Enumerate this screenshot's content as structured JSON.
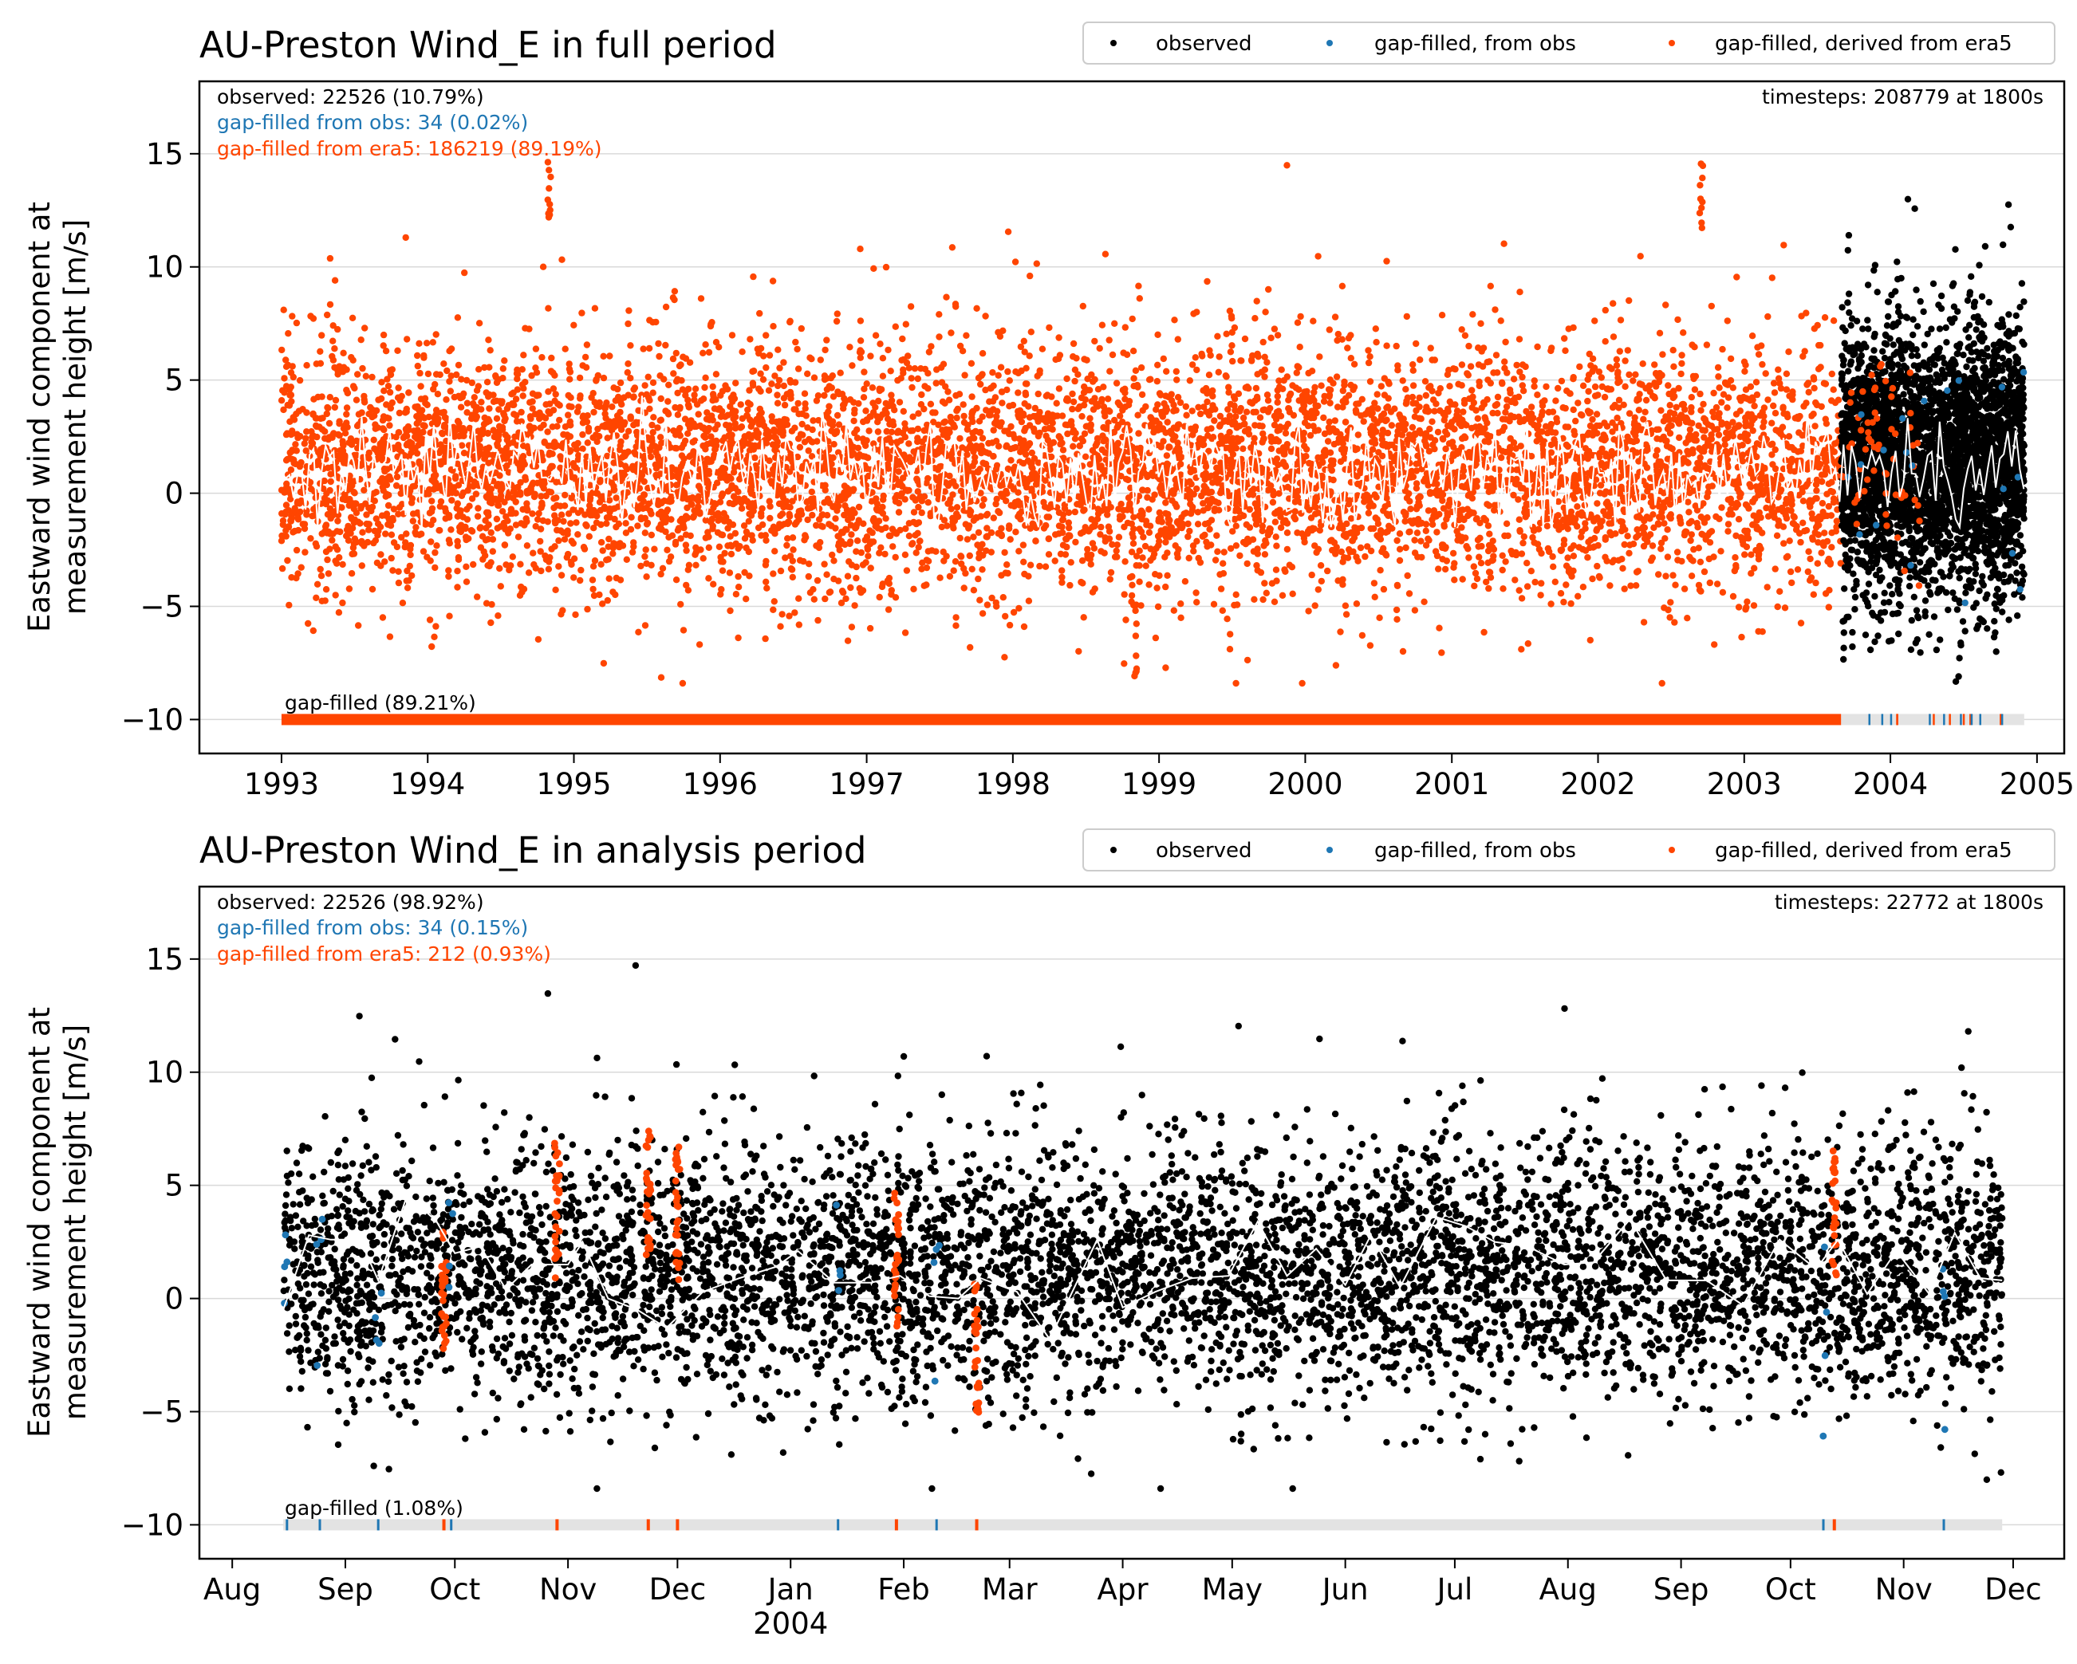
{
  "colors": {
    "observed": "#000000",
    "gapfilled_obs": "#1f77b4",
    "gapfilled_era5": "#ff4500",
    "mean_line": "#ffffff",
    "grid": "#d9d9d9",
    "gapbar_bg": "#e3e3e3"
  },
  "legend": {
    "observed": "observed",
    "gapfilled_obs": "gap-filled, from obs",
    "gapfilled_era5": "gap-filled, derived from era5"
  },
  "chart_data": [
    {
      "type": "scatter",
      "title": "AU-Preston Wind_E in full period",
      "ylabel": [
        "Eastward wind component at",
        "measurement height [m/s]"
      ],
      "ylim": [
        -11.5,
        18.2
      ],
      "yticks": [
        15,
        10,
        5,
        0,
        -5,
        -10
      ],
      "ytick_labels": [
        "15",
        "10",
        "5",
        "0",
        "−5",
        "−10"
      ],
      "xlim": [
        "1992-06-10",
        "2005-03-10"
      ],
      "xticks": [
        "1993-01-01",
        "1994-01-01",
        "1995-01-01",
        "1996-01-01",
        "1997-01-01",
        "1998-01-01",
        "1999-01-01",
        "2000-01-01",
        "2001-01-01",
        "2002-01-01",
        "2003-01-01",
        "2004-01-01",
        "2005-01-01"
      ],
      "xtick_labels": [
        "1993",
        "1994",
        "1995",
        "1996",
        "1997",
        "1998",
        "1999",
        "2000",
        "2001",
        "2002",
        "2003",
        "2004",
        "2005"
      ],
      "grid": "horizontal",
      "legend_position": "top-right, above plot",
      "stats": {
        "observed": "observed: 22526 (10.79%)",
        "gapfilled_obs": "gap-filled from obs: 34 (0.02%)",
        "gapfilled_era5": "gap-filled from era5: 186219 (89.19%)",
        "timesteps": "timesteps: 208779 at 1800s",
        "gapfilled_label": "gap-filled (89.21%)"
      },
      "series": [
        {
          "name": "gap-filled, derived from era5",
          "x_range": [
            "1993-01-01",
            "2003-08-31"
          ],
          "approx_range": [
            -7,
            10
          ],
          "spikes": [
            [
              "1994-11-01",
              15
            ],
            [
              "1998-11-01",
              -8.4
            ],
            [
              "2002-09-15",
              15.2
            ]
          ]
        },
        {
          "name": "observed",
          "x_range": [
            "2003-08-31",
            "2004-11-30"
          ],
          "approx_range": [
            -8.5,
            15.5
          ]
        },
        {
          "name": "monthly mean",
          "approx_range": [
            -1.5,
            4.5
          ]
        }
      ],
      "gapbar": {
        "filled_until": "2003-08-31",
        "end": "2004-11-30"
      }
    },
    {
      "type": "scatter",
      "title": "AU-Preston Wind_E in analysis period",
      "ylabel": [
        "Eastward wind component at",
        "measurement height [m/s]"
      ],
      "ylim": [
        -11.5,
        18.2
      ],
      "yticks": [
        15,
        10,
        5,
        0,
        -5,
        -10
      ],
      "ytick_labels": [
        "15",
        "10",
        "5",
        "0",
        "−5",
        "−10"
      ],
      "xlim": [
        "2003-07-23",
        "2004-12-15"
      ],
      "xticks": [
        "2003-08-01",
        "2003-09-01",
        "2003-10-01",
        "2003-11-01",
        "2003-12-01",
        "2004-01-01",
        "2004-02-01",
        "2004-03-01",
        "2004-04-01",
        "2004-05-01",
        "2004-06-01",
        "2004-07-01",
        "2004-08-01",
        "2004-09-01",
        "2004-10-01",
        "2004-11-01",
        "2004-12-01"
      ],
      "xtick_labels": [
        "Aug",
        "Sep",
        "Oct",
        "Nov",
        "Dec",
        "Jan",
        "Feb",
        "Mar",
        "Apr",
        "May",
        "Jun",
        "Jul",
        "Aug",
        "Sep",
        "Oct",
        "Nov",
        "Dec"
      ],
      "xtick_sublabel": {
        "at": "2004-01-01",
        "text": "2004"
      },
      "grid": "horizontal",
      "legend_position": "top-right, above plot",
      "stats": {
        "observed": "observed: 22526 (98.92%)",
        "gapfilled_obs": "gap-filled from obs: 34 (0.15%)",
        "gapfilled_era5": "gap-filled from era5: 212 (0.93%)",
        "timesteps": "timesteps: 22772 at 1800s",
        "gapfilled_label": "gap-filled (1.08%)"
      },
      "series": [
        {
          "name": "observed",
          "x_range": [
            "2003-08-15",
            "2004-11-28"
          ],
          "approx_range": [
            -8.5,
            15.5
          ]
        },
        {
          "name": "gap-filled, derived from era5",
          "clusters": [
            "2003-09-28",
            "2003-10-29",
            "2003-11-23",
            "2003-12-01",
            "2004-01-30",
            "2004-02-21",
            "2004-10-13"
          ]
        },
        {
          "name": "gap-filled, from obs",
          "clusters": [
            "2003-08-16",
            "2003-08-25",
            "2003-09-10",
            "2003-09-30",
            "2004-01-14",
            "2004-02-10",
            "2004-10-10",
            "2004-11-12"
          ]
        },
        {
          "name": "monthly mean",
          "points": [
            [
              "2003-08-15",
              -0.5
            ],
            [
              "2003-08-22",
              2.8
            ],
            [
              "2003-08-28",
              2.6
            ],
            [
              "2003-09-05",
              2.6
            ],
            [
              "2003-09-10",
              0.8
            ],
            [
              "2003-09-18",
              4.6
            ],
            [
              "2003-09-26",
              3.4
            ],
            [
              "2003-10-01",
              2.0
            ],
            [
              "2003-10-08",
              2.3
            ],
            [
              "2003-10-15",
              0.4
            ],
            [
              "2003-10-22",
              1.5
            ],
            [
              "2003-11-01",
              1.5
            ],
            [
              "2003-11-05",
              2.5
            ],
            [
              "2003-11-12",
              0.0
            ],
            [
              "2003-11-20",
              -0.5
            ],
            [
              "2003-11-28",
              -1.3
            ],
            [
              "2003-12-08",
              0.3
            ],
            [
              "2003-12-18",
              0.9
            ],
            [
              "2003-12-28",
              1.4
            ],
            [
              "2004-01-03",
              2.1
            ],
            [
              "2004-01-13",
              0.7
            ],
            [
              "2004-01-23",
              0.7
            ],
            [
              "2004-01-31",
              1.0
            ],
            [
              "2004-02-08",
              0.1
            ],
            [
              "2004-02-16",
              0.0
            ],
            [
              "2004-02-22",
              0.9
            ],
            [
              "2004-03-03",
              0.3
            ],
            [
              "2004-03-12",
              -1.8
            ],
            [
              "2004-03-25",
              2.6
            ],
            [
              "2004-04-01",
              -0.4
            ],
            [
              "2004-04-10",
              0.3
            ],
            [
              "2004-04-20",
              0.9
            ],
            [
              "2004-04-30",
              1.0
            ],
            [
              "2004-05-08",
              3.4
            ],
            [
              "2004-05-16",
              1.0
            ],
            [
              "2004-05-24",
              2.2
            ],
            [
              "2004-06-01",
              0.6
            ],
            [
              "2004-06-08",
              2.8
            ],
            [
              "2004-06-16",
              0.5
            ],
            [
              "2004-06-26",
              3.6
            ],
            [
              "2004-07-04",
              3.2
            ],
            [
              "2004-07-12",
              2.5
            ],
            [
              "2004-07-21",
              2.3
            ],
            [
              "2004-07-31",
              1.5
            ],
            [
              "2004-08-08",
              1.6
            ],
            [
              "2004-08-18",
              3.5
            ],
            [
              "2004-08-28",
              0.8
            ],
            [
              "2004-09-08",
              0.8
            ],
            [
              "2004-09-18",
              -0.3
            ],
            [
              "2004-09-28",
              2.6
            ],
            [
              "2004-10-08",
              1.3
            ],
            [
              "2004-10-14",
              2.6
            ],
            [
              "2004-10-22",
              0.2
            ],
            [
              "2004-10-30",
              2.1
            ],
            [
              "2004-11-08",
              0.2
            ],
            [
              "2004-11-15",
              2.9
            ],
            [
              "2004-11-22",
              0.9
            ],
            [
              "2004-11-28",
              0.8
            ]
          ]
        }
      ],
      "gapbar": {
        "filled_until": "2003-08-15",
        "end": "2004-11-28"
      }
    }
  ]
}
